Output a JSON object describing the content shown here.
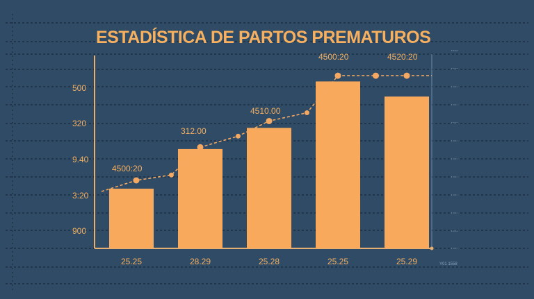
{
  "chart_data": {
    "type": "bar",
    "title": "ESTADÍSTICA DE PARTOS PREMATUROS",
    "categories": [
      "25.25",
      "28.29",
      "25.28",
      "25.25",
      "25.29"
    ],
    "y_tick_labels": [
      "500",
      "320",
      "9.40",
      "3:20",
      "900"
    ],
    "bar_values": [
      166,
      276,
      335,
      464,
      422
    ],
    "line_points": [
      {
        "x": 0.07,
        "y": 189
      },
      {
        "x": 0.58,
        "y": 204
      },
      {
        "x": 1.0,
        "y": 281
      },
      {
        "x": 1.55,
        "y": 312
      },
      {
        "x": 2.0,
        "y": 354
      },
      {
        "x": 2.55,
        "y": 377
      },
      {
        "x": 3.0,
        "y": 480
      },
      {
        "x": 3.55,
        "y": 480
      },
      {
        "x": 4.0,
        "y": 480
      }
    ],
    "data_labels": [
      "4500:20",
      "312.00",
      "4510.00",
      "4500:20",
      "4520:20"
    ],
    "right_axis_bottom_label": "Y01 1558",
    "ylim": [
      0,
      540
    ],
    "grid": true,
    "colors": {
      "background": "#2f4b66",
      "bar": "#f8a95c",
      "line": "#f4a862",
      "text": "#f6b060",
      "axis": "#e8b070",
      "grid": "#1d3044"
    }
  }
}
